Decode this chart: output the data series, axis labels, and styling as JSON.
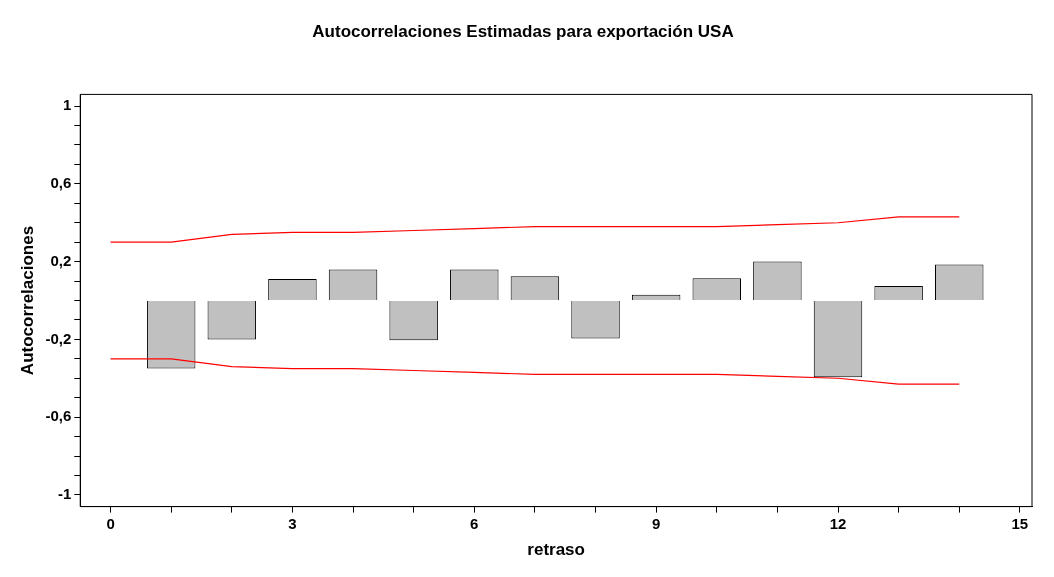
{
  "chart_data": {
    "type": "bar",
    "title": "Autocorrelaciones Estimadas para exportación USA",
    "xlabel": "retraso",
    "ylabel": "Autocorrelaciones",
    "x": [
      1,
      2,
      3,
      4,
      5,
      6,
      7,
      8,
      9,
      10,
      11,
      12,
      13,
      14
    ],
    "series": [
      {
        "color": "#c0c0c0",
        "values": [
          -0.35,
          -0.2,
          0.11,
          0.16,
          -0.205,
          0.16,
          0.125,
          -0.195,
          0.03,
          0.115,
          0.2,
          -0.395,
          0.075,
          0.185
        ]
      },
      {
        "type": "line",
        "color": "#ff0000",
        "x": [
          0,
          1,
          2,
          3,
          4,
          5,
          6,
          7,
          8,
          9,
          10,
          11,
          12,
          13,
          14
        ],
        "values": [
          0.3,
          0.3,
          0.34,
          0.35,
          0.35,
          0.36,
          0.37,
          0.38,
          0.38,
          0.38,
          0.38,
          0.39,
          0.4,
          0.43,
          0.43
        ]
      },
      {
        "type": "line",
        "color": "#ff0000",
        "x": [
          0,
          1,
          2,
          3,
          4,
          5,
          6,
          7,
          8,
          9,
          10,
          11,
          12,
          13,
          14
        ],
        "values": [
          -0.3,
          -0.3,
          -0.34,
          -0.35,
          -0.35,
          -0.36,
          -0.37,
          -0.38,
          -0.38,
          -0.38,
          -0.38,
          -0.39,
          -0.4,
          -0.43,
          -0.43
        ]
      }
    ],
    "xlim": [
      -0.5,
      15.2
    ],
    "xticks": [
      0,
      {
        "value": 1,
        "label": null
      },
      {
        "value": 2,
        "label": null
      },
      3,
      {
        "value": 4,
        "label": null
      },
      {
        "value": 5,
        "label": null
      },
      6,
      {
        "value": 7,
        "label": null
      },
      {
        "value": 8,
        "label": null
      },
      9,
      {
        "value": 10,
        "label": null
      },
      {
        "value": 11,
        "label": null
      },
      12,
      {
        "value": 13,
        "label": null
      },
      {
        "value": 14,
        "label": null
      },
      15
    ],
    "ylim": [
      -1.06,
      1.06
    ],
    "yticks": [
      {
        "value": -1,
        "label": "-1"
      },
      {
        "value": -0.9,
        "label": null
      },
      {
        "value": -0.8,
        "label": null
      },
      {
        "value": -0.7,
        "label": null
      },
      {
        "value": -0.6,
        "label": "-0,6"
      },
      {
        "value": -0.5,
        "label": null
      },
      {
        "value": -0.4,
        "label": null
      },
      {
        "value": -0.3,
        "label": null
      },
      {
        "value": -0.2,
        "label": "-0,2"
      },
      {
        "value": -0.1,
        "label": null
      },
      {
        "value": 0,
        "label": null
      },
      {
        "value": 0.1,
        "label": null
      },
      {
        "value": 0.2,
        "label": "0,2"
      },
      {
        "value": 0.3,
        "label": null
      },
      {
        "value": 0.4,
        "label": null
      },
      {
        "value": 0.5,
        "label": null
      },
      {
        "value": 0.6,
        "label": "0,6"
      },
      {
        "value": 0.7,
        "label": null
      },
      {
        "value": 0.8,
        "label": null
      },
      {
        "value": 0.9,
        "label": null
      },
      {
        "value": 1,
        "label": "1"
      }
    ],
    "grid": false,
    "legend": false,
    "marker": "none",
    "line_style": "solid"
  }
}
